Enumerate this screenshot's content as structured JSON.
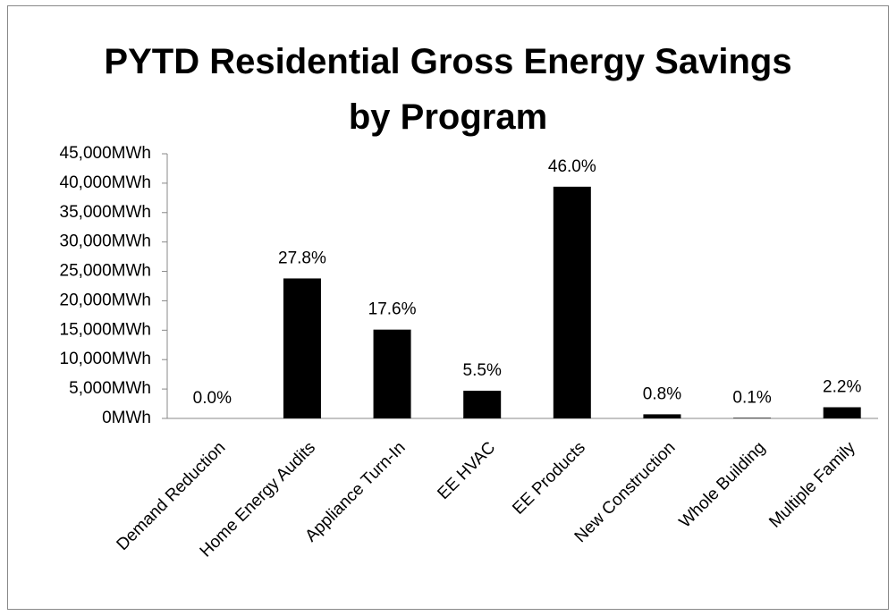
{
  "chart_data": {
    "type": "bar",
    "title": "PYTD Residential Gross Energy Savings by Program",
    "categories": [
      "Demand Reduction",
      "Home Energy Audits",
      "Appliance Turn-In",
      "EE HVAC",
      "EE Products",
      "New Construction",
      "Whole Building",
      "Multiple Family"
    ],
    "values": [
      0,
      23800,
      15100,
      4700,
      39400,
      700,
      100,
      1900
    ],
    "data_labels": [
      "0.0%",
      "27.8%",
      "17.6%",
      "5.5%",
      "46.0%",
      "0.8%",
      "0.1%",
      "2.2%"
    ],
    "color": "#000000",
    "ylim": [
      0,
      45000
    ],
    "yticks": [
      {
        "value": 0,
        "label": "0MWh"
      },
      {
        "value": 5000,
        "label": "5,000MWh"
      },
      {
        "value": 10000,
        "label": "10,000MWh"
      },
      {
        "value": 15000,
        "label": "15,000MWh"
      },
      {
        "value": 20000,
        "label": "20,000MWh"
      },
      {
        "value": 25000,
        "label": "25,000MWh"
      },
      {
        "value": 30000,
        "label": "30,000MWh"
      },
      {
        "value": 35000,
        "label": "35,000MWh"
      },
      {
        "value": 40000,
        "label": "40,000MWh"
      },
      {
        "value": 45000,
        "label": "45,000MWh"
      }
    ],
    "grid": false
  }
}
